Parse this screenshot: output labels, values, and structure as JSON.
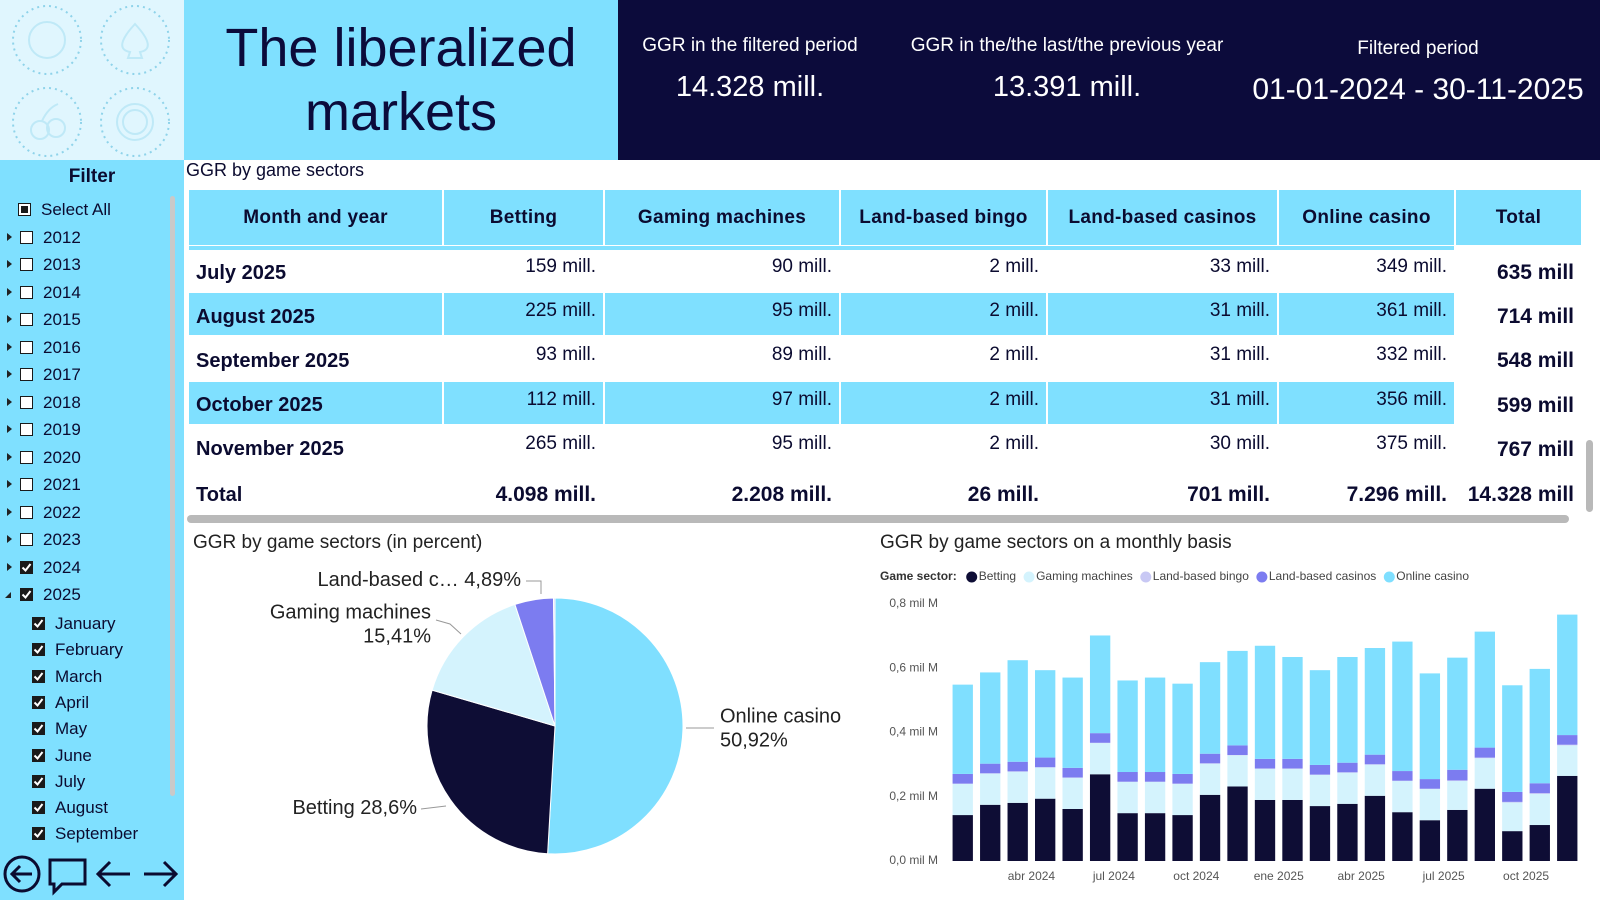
{
  "header": {
    "title": "The liberalized markets"
  },
  "kpis": [
    {
      "label": "GGR in the filtered period",
      "value": "14.328 mill."
    },
    {
      "label": "GGR in the/the last/the previous year",
      "value": "13.391 mill."
    },
    {
      "label": "Filtered period",
      "value": "01-01-2024 - 30-11-2025"
    }
  ],
  "filter": {
    "title": "Filter",
    "items": [
      {
        "label": "Select All",
        "checked": "partial"
      },
      {
        "label": "2012",
        "checked": false,
        "expanded": false
      },
      {
        "label": "2013",
        "checked": false,
        "expanded": false
      },
      {
        "label": "2014",
        "checked": false,
        "expanded": false
      },
      {
        "label": "2015",
        "checked": false,
        "expanded": false
      },
      {
        "label": "2016",
        "checked": false,
        "expanded": false
      },
      {
        "label": "2017",
        "checked": false,
        "expanded": false
      },
      {
        "label": "2018",
        "checked": false,
        "expanded": false
      },
      {
        "label": "2019",
        "checked": false,
        "expanded": false
      },
      {
        "label": "2020",
        "checked": false,
        "expanded": false
      },
      {
        "label": "2021",
        "checked": false,
        "expanded": false
      },
      {
        "label": "2022",
        "checked": false,
        "expanded": false
      },
      {
        "label": "2023",
        "checked": false,
        "expanded": false
      },
      {
        "label": "2024",
        "checked": true,
        "expanded": false
      },
      {
        "label": "2025",
        "checked": true,
        "expanded": true,
        "children": [
          {
            "label": "January",
            "checked": true
          },
          {
            "label": "February",
            "checked": true
          },
          {
            "label": "March",
            "checked": true
          },
          {
            "label": "April",
            "checked": true
          },
          {
            "label": "May",
            "checked": true
          },
          {
            "label": "June",
            "checked": true
          },
          {
            "label": "July",
            "checked": true
          },
          {
            "label": "August",
            "checked": true
          },
          {
            "label": "September",
            "checked": true
          }
        ]
      }
    ]
  },
  "table": {
    "title": "GGR by game sectors",
    "columns": [
      "Month and year",
      "Betting",
      "Gaming machines",
      "Land-based bingo",
      "Land-based casinos",
      "Online casino",
      "Total"
    ],
    "rows": [
      [
        "July 2025",
        "159 mill.",
        "90 mill.",
        "2 mill.",
        "33 mill.",
        "349 mill.",
        "635 mill"
      ],
      [
        "August 2025",
        "225 mill.",
        "95 mill.",
        "2 mill.",
        "31 mill.",
        "361 mill.",
        "714 mill"
      ],
      [
        "September 2025",
        "93 mill.",
        "89 mill.",
        "2 mill.",
        "31 mill.",
        "332 mill.",
        "548 mill"
      ],
      [
        "October 2025",
        "112 mill.",
        "97 mill.",
        "2 mill.",
        "31 mill.",
        "356 mill.",
        "599 mill"
      ],
      [
        "November 2025",
        "265 mill.",
        "95 mill.",
        "2 mill.",
        "30 mill.",
        "375 mill.",
        "767 mill"
      ]
    ],
    "total_row": [
      "Total",
      "4.098 mill.",
      "2.208 mill.",
      "26 mill.",
      "701 mill.",
      "7.296 mill.",
      "14.328 mill"
    ]
  },
  "chart_data": [
    {
      "type": "pie",
      "title": "GGR by game sectors (in percent)",
      "categories": [
        "Online casino",
        "Betting",
        "Gaming machines",
        "Land-based c…",
        null
      ],
      "values": [
        50.92,
        28.6,
        15.41,
        4.89,
        0.18
      ],
      "value_labels": [
        "50,92%",
        "28,6%",
        "15,41%",
        "4,89%",
        null
      ],
      "colors": [
        "#7fdfff",
        "#0e0d35",
        "#d4f3fd",
        "#7c7cf0",
        "#c8c8f4"
      ]
    },
    {
      "type": "stacked_bar",
      "title": "GGR by game sectors on a monthly basis",
      "legend_title": "Game sector:",
      "categories": [
        null,
        null,
        null,
        "abr 2024",
        null,
        null,
        "jul 2024",
        null,
        null,
        "oct 2024",
        null,
        null,
        "ene 2025",
        null,
        null,
        "abr 2025",
        null,
        null,
        "jul 2025",
        null,
        null,
        "oct 2025",
        null
      ],
      "series": [
        {
          "name": "Betting",
          "color": "#0e0d35",
          "values": [
            0.143,
            0.175,
            0.181,
            0.194,
            0.162,
            0.27,
            0.149,
            0.149,
            0.143,
            0.206,
            0.232,
            0.19,
            0.19,
            0.171,
            0.178,
            0.203,
            0.152,
            0.127,
            0.159,
            0.225,
            0.093,
            0.112,
            0.265
          ]
        },
        {
          "name": "Gaming machines",
          "color": "#d4f3fd",
          "values": [
            0.097,
            0.097,
            0.097,
            0.097,
            0.097,
            0.097,
            0.097,
            0.097,
            0.097,
            0.097,
            0.097,
            0.097,
            0.097,
            0.097,
            0.097,
            0.097,
            0.097,
            0.097,
            0.09,
            0.095,
            0.089,
            0.097,
            0.095
          ]
        },
        {
          "name": "Land-based bingo",
          "color": "#c8c8f4",
          "values": [
            0.001,
            0.001,
            0.001,
            0.001,
            0.001,
            0.001,
            0.001,
            0.001,
            0.001,
            0.001,
            0.001,
            0.001,
            0.001,
            0.001,
            0.001,
            0.001,
            0.001,
            0.001,
            0.002,
            0.002,
            0.002,
            0.002,
            0.002
          ]
        },
        {
          "name": "Land-based casinos",
          "color": "#7c7cf0",
          "values": [
            0.03,
            0.03,
            0.03,
            0.03,
            0.03,
            0.03,
            0.03,
            0.03,
            0.03,
            0.03,
            0.03,
            0.03,
            0.03,
            0.03,
            0.03,
            0.03,
            0.03,
            0.03,
            0.033,
            0.031,
            0.031,
            0.031,
            0.03
          ]
        },
        {
          "name": "Online casino",
          "color": "#7fdfff",
          "values": [
            0.278,
            0.284,
            0.316,
            0.272,
            0.281,
            0.304,
            0.285,
            0.294,
            0.281,
            0.285,
            0.294,
            0.352,
            0.317,
            0.295,
            0.329,
            0.332,
            0.403,
            0.329,
            0.349,
            0.361,
            0.332,
            0.356,
            0.375
          ]
        }
      ],
      "ylim": [
        0,
        0.8
      ],
      "yticks": [
        {
          "value": 0,
          "label": "0,0 mil M"
        },
        {
          "value": 0.2,
          "label": "0,2 mil M"
        },
        {
          "value": 0.4,
          "label": "0,4 mil M"
        },
        {
          "value": 0.6,
          "label": "0,6 mil M"
        },
        {
          "value": 0.8,
          "label": "0,8 mil M"
        }
      ],
      "grid": false
    }
  ]
}
